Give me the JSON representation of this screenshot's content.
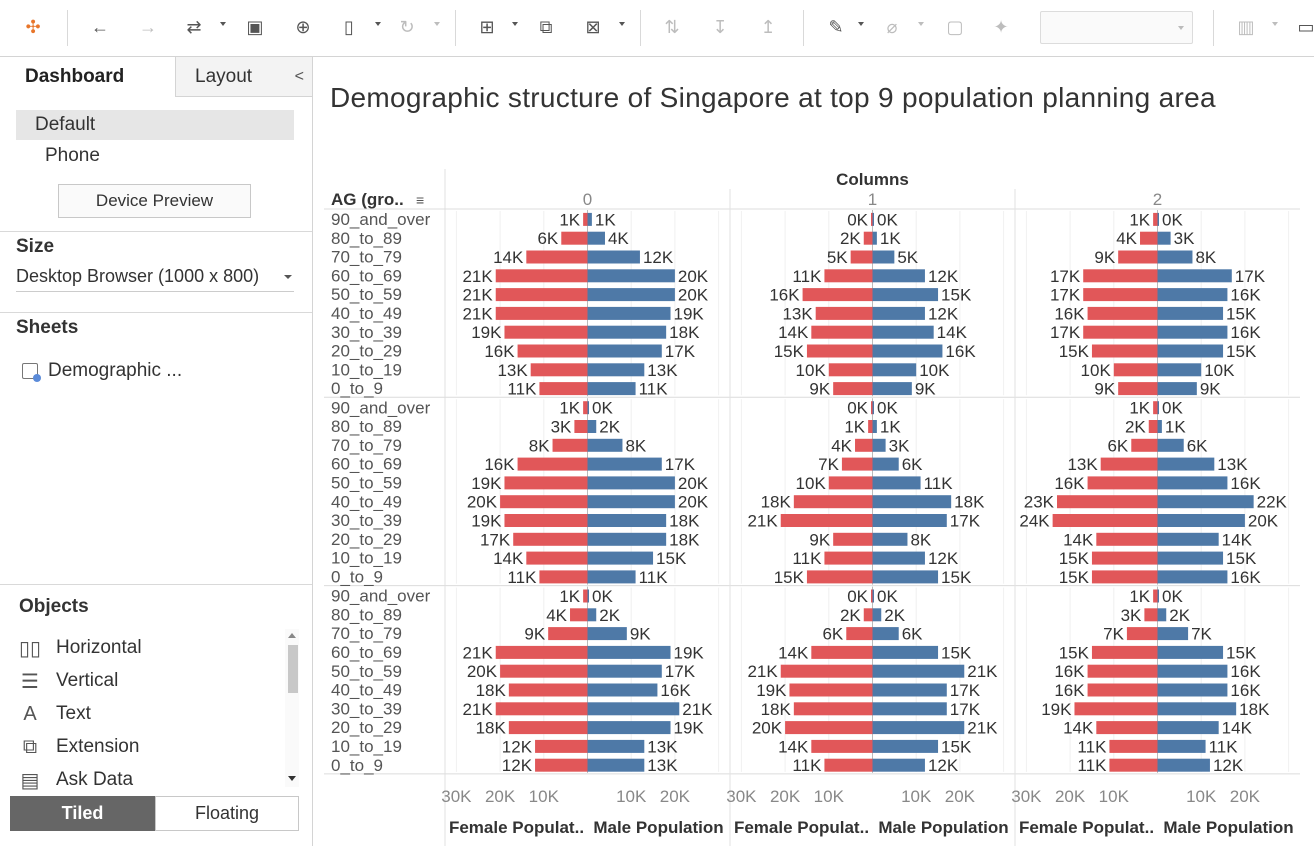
{
  "toolbar": {
    "icons": [
      "tableau-logo-icon",
      "undo-icon",
      "redo-icon",
      "replay-icon",
      "save-icon",
      "new-datasource-icon",
      "pause-updates-icon",
      "refresh-icon",
      "new-worksheet-icon",
      "duplicate-icon",
      "clear-sheet-icon",
      "swap-icon",
      "sort-ascending-icon",
      "sort-descending-icon",
      "highlight-icon",
      "group-icon",
      "label-icon",
      "pin-icon",
      "show-me-icon",
      "presentation-icon"
    ]
  },
  "left_panel": {
    "tabs": {
      "dashboard": "Dashboard",
      "layout": "Layout",
      "collapse": "<"
    },
    "device": {
      "default": "Default",
      "phone": "Phone",
      "preview_button": "Device Preview"
    },
    "size": {
      "title": "Size",
      "value": "Desktop Browser (1000 x 800)"
    },
    "sheets": {
      "title": "Sheets",
      "item": "Demographic ..."
    },
    "objects": {
      "title": "Objects",
      "items": [
        "Horizontal",
        "Vertical",
        "Text",
        "Extension",
        "Ask Data"
      ]
    },
    "mode": {
      "tiled": "Tiled",
      "floating": "Floating"
    }
  },
  "viz": {
    "title": "Demographic structure of Singapore at top 9 population planning area",
    "row_header": "AG (gro..",
    "columns_header": "Columns",
    "female_label": "Female Populat..",
    "male_label": "Male Population",
    "female_color": "#e15759",
    "male_color": "#4e79a7"
  },
  "chart_data": {
    "type": "bar",
    "layout": "3x3 small multiples population pyramids",
    "column_labels": [
      "0",
      "1",
      "2"
    ],
    "age_groups": [
      "90_and_over",
      "80_to_89",
      "70_to_79",
      "60_to_69",
      "50_to_59",
      "40_to_49",
      "30_to_39",
      "20_to_29",
      "10_to_19",
      "0_to_9"
    ],
    "female_axis_ticks": [
      "30K",
      "20K",
      "10K"
    ],
    "male_axis_ticks": [
      "10K",
      "20K"
    ],
    "xlim": [
      0,
      30000
    ],
    "panels": [
      {
        "row": 0,
        "col": 0,
        "female": [
          1000,
          6000,
          14000,
          21000,
          21000,
          21000,
          19000,
          16000,
          13000,
          11000
        ],
        "male": [
          1000,
          4000,
          12000,
          20000,
          20000,
          19000,
          18000,
          17000,
          13000,
          11000
        ],
        "female_labels": [
          "1K",
          "6K",
          "14K",
          "21K",
          "21K",
          "21K",
          "19K",
          "16K",
          "13K",
          "11K"
        ],
        "male_labels": [
          "1K",
          "4K",
          "12K",
          "20K",
          "20K",
          "19K",
          "18K",
          "17K",
          "13K",
          "11K"
        ]
      },
      {
        "row": 0,
        "col": 1,
        "female": [
          300,
          2000,
          5000,
          11000,
          16000,
          13000,
          14000,
          15000,
          10000,
          9000
        ],
        "male": [
          300,
          1000,
          5000,
          12000,
          15000,
          12000,
          14000,
          16000,
          10000,
          9000
        ],
        "female_labels": [
          "0K",
          "2K",
          "5K",
          "11K",
          "16K",
          "13K",
          "14K",
          "15K",
          "10K",
          "9K"
        ],
        "male_labels": [
          "0K",
          "1K",
          "5K",
          "12K",
          "15K",
          "12K",
          "14K",
          "16K",
          "10K",
          "9K"
        ]
      },
      {
        "row": 0,
        "col": 2,
        "female": [
          1000,
          4000,
          9000,
          17000,
          17000,
          16000,
          17000,
          15000,
          10000,
          9000
        ],
        "male": [
          300,
          3000,
          8000,
          17000,
          16000,
          15000,
          16000,
          15000,
          10000,
          9000
        ],
        "female_labels": [
          "1K",
          "4K",
          "9K",
          "17K",
          "17K",
          "16K",
          "17K",
          "15K",
          "10K",
          "9K"
        ],
        "male_labels": [
          "0K",
          "3K",
          "8K",
          "17K",
          "16K",
          "15K",
          "16K",
          "15K",
          "10K",
          "9K"
        ]
      },
      {
        "row": 1,
        "col": 0,
        "female": [
          1000,
          3000,
          8000,
          16000,
          19000,
          20000,
          19000,
          17000,
          14000,
          11000
        ],
        "male": [
          300,
          2000,
          8000,
          17000,
          20000,
          20000,
          18000,
          18000,
          15000,
          11000
        ],
        "female_labels": [
          "1K",
          "3K",
          "8K",
          "16K",
          "19K",
          "20K",
          "19K",
          "17K",
          "14K",
          "11K"
        ],
        "male_labels": [
          "0K",
          "2K",
          "8K",
          "17K",
          "20K",
          "20K",
          "18K",
          "18K",
          "15K",
          "11K"
        ]
      },
      {
        "row": 1,
        "col": 1,
        "female": [
          300,
          1000,
          4000,
          7000,
          10000,
          18000,
          21000,
          9000,
          11000,
          15000
        ],
        "male": [
          300,
          1000,
          3000,
          6000,
          11000,
          18000,
          17000,
          8000,
          12000,
          15000
        ],
        "female_labels": [
          "0K",
          "1K",
          "4K",
          "7K",
          "10K",
          "18K",
          "21K",
          "9K",
          "11K",
          "15K"
        ],
        "male_labels": [
          "0K",
          "1K",
          "3K",
          "6K",
          "11K",
          "18K",
          "17K",
          "8K",
          "12K",
          "15K"
        ]
      },
      {
        "row": 1,
        "col": 2,
        "female": [
          1000,
          2000,
          6000,
          13000,
          16000,
          23000,
          24000,
          14000,
          15000,
          15000
        ],
        "male": [
          300,
          1000,
          6000,
          13000,
          16000,
          22000,
          20000,
          14000,
          15000,
          16000
        ],
        "female_labels": [
          "1K",
          "2K",
          "6K",
          "13K",
          "16K",
          "23K",
          "24K",
          "14K",
          "15K",
          "15K"
        ],
        "male_labels": [
          "0K",
          "1K",
          "6K",
          "13K",
          "16K",
          "22K",
          "20K",
          "14K",
          "15K",
          "16K"
        ]
      },
      {
        "row": 2,
        "col": 0,
        "female": [
          1000,
          4000,
          9000,
          21000,
          20000,
          18000,
          21000,
          18000,
          12000,
          12000
        ],
        "male": [
          300,
          2000,
          9000,
          19000,
          17000,
          16000,
          21000,
          19000,
          13000,
          13000
        ],
        "female_labels": [
          "1K",
          "4K",
          "9K",
          "21K",
          "20K",
          "18K",
          "21K",
          "18K",
          "12K",
          "12K"
        ],
        "male_labels": [
          "0K",
          "2K",
          "9K",
          "19K",
          "17K",
          "16K",
          "21K",
          "19K",
          "13K",
          "13K"
        ]
      },
      {
        "row": 2,
        "col": 1,
        "female": [
          300,
          2000,
          6000,
          14000,
          21000,
          19000,
          18000,
          20000,
          14000,
          11000
        ],
        "male": [
          300,
          2000,
          6000,
          15000,
          21000,
          17000,
          17000,
          21000,
          15000,
          12000
        ],
        "female_labels": [
          "0K",
          "2K",
          "6K",
          "14K",
          "21K",
          "19K",
          "18K",
          "20K",
          "14K",
          "11K"
        ],
        "male_labels": [
          "0K",
          "2K",
          "6K",
          "15K",
          "21K",
          "17K",
          "17K",
          "21K",
          "15K",
          "12K"
        ]
      },
      {
        "row": 2,
        "col": 2,
        "female": [
          1000,
          3000,
          7000,
          15000,
          16000,
          16000,
          19000,
          14000,
          11000,
          11000
        ],
        "male": [
          300,
          2000,
          7000,
          15000,
          16000,
          16000,
          18000,
          14000,
          11000,
          12000
        ],
        "female_labels": [
          "1K",
          "3K",
          "7K",
          "15K",
          "16K",
          "16K",
          "19K",
          "14K",
          "11K",
          "11K"
        ],
        "male_labels": [
          "0K",
          "2K",
          "7K",
          "15K",
          "16K",
          "16K",
          "18K",
          "14K",
          "11K",
          "12K"
        ]
      }
    ]
  }
}
